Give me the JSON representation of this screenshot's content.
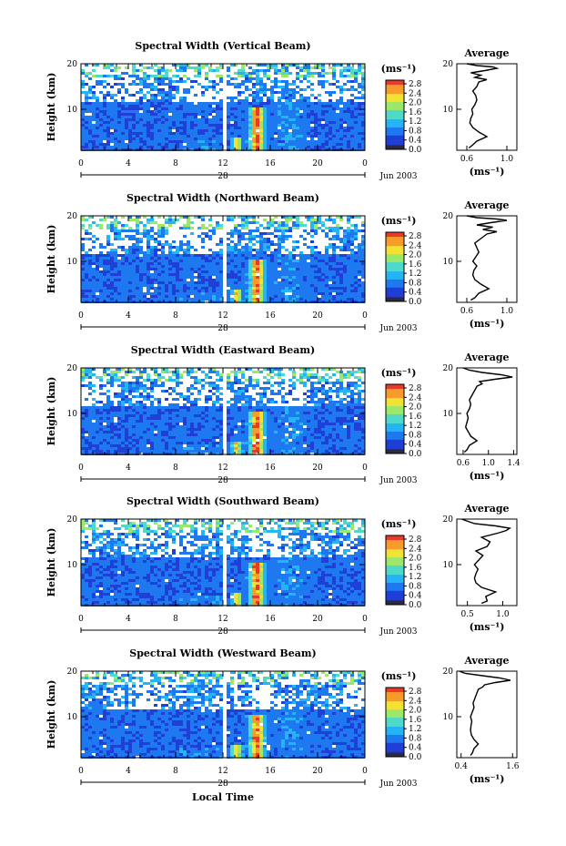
{
  "figure": {
    "xlabel": "Local Time",
    "date_label": "Jun 2003",
    "day_label": "28",
    "colorbar_unit": "(ms⁻¹)",
    "colorbar_ticks": [
      "2.8",
      "2.4",
      "2.0",
      "1.6",
      "1.2",
      "0.8",
      "0.4",
      "0.0"
    ],
    "colormap": [
      "#2a2a8c",
      "#1f3fd6",
      "#1e78f0",
      "#25b4f5",
      "#4fd9c8",
      "#9be86a",
      "#f2e234",
      "#f79b2a",
      "#e83a2a"
    ],
    "ylabel": "Height (km)",
    "avg_title": "Average",
    "avg_xlabel": "(ms⁻¹)"
  },
  "chart_data": [
    {
      "type": "heatmap",
      "title": "Spectral Width (Vertical Beam)",
      "xlabel": "Local Time",
      "ylabel": "Height (km)",
      "xticks": [
        "0",
        "4",
        "8",
        "12",
        "16",
        "20",
        "0"
      ],
      "yticks": [
        "10",
        "20"
      ],
      "xlim": [
        0,
        24
      ],
      "ylim": [
        1,
        20
      ],
      "clim": [
        0,
        3
      ],
      "data_gap_local_time": 12
    },
    {
      "type": "line",
      "title": "Average",
      "xlabel": "(ms⁻¹)",
      "xticks": [
        "0.6",
        "1.0"
      ],
      "xlim": [
        0.5,
        1.1
      ],
      "yticks": [
        "10",
        "20"
      ],
      "ylim": [
        1,
        20
      ],
      "x": [
        0.62,
        0.65,
        0.7,
        0.8,
        0.72,
        0.66,
        0.63,
        0.64,
        0.66,
        0.65,
        0.68,
        0.7,
        0.69,
        0.66,
        0.7,
        0.72,
        0.8,
        0.68,
        0.74,
        0.64,
        0.78,
        0.9,
        0.86,
        0.7,
        0.6
      ],
      "y": [
        1.5,
        2,
        3,
        4,
        5,
        6,
        7,
        8,
        9,
        10,
        11,
        12,
        13,
        14,
        15,
        16,
        16.5,
        17,
        17.5,
        18,
        18.5,
        19,
        19.3,
        19.6,
        20
      ]
    },
    {
      "type": "heatmap",
      "title": "Spectral Width (Northward Beam)",
      "xlabel": "Local Time",
      "ylabel": "Height (km)",
      "xticks": [
        "0",
        "4",
        "8",
        "12",
        "16",
        "20",
        "0"
      ],
      "yticks": [
        "10",
        "20"
      ],
      "xlim": [
        0,
        24
      ],
      "ylim": [
        1,
        20
      ],
      "clim": [
        0,
        3
      ],
      "data_gap_local_time": 12
    },
    {
      "type": "line",
      "title": "Average",
      "xlabel": "(ms⁻¹)",
      "xticks": [
        "0.6",
        "1.0"
      ],
      "xlim": [
        0.5,
        1.1
      ],
      "yticks": [
        "10",
        "20"
      ],
      "ylim": [
        1,
        20
      ],
      "x": [
        0.64,
        0.68,
        0.72,
        0.82,
        0.74,
        0.68,
        0.66,
        0.67,
        0.7,
        0.66,
        0.69,
        0.72,
        0.7,
        0.68,
        0.74,
        0.8,
        0.9,
        0.76,
        0.86,
        0.7,
        0.84,
        1.0,
        0.9,
        0.7,
        0.6
      ],
      "y": [
        1.5,
        2,
        3,
        4,
        5,
        6,
        7,
        8,
        9,
        10,
        11,
        12,
        13,
        14,
        15,
        16,
        16.5,
        17,
        17.5,
        18,
        18.5,
        19,
        19.3,
        19.6,
        20
      ]
    },
    {
      "type": "heatmap",
      "title": "Spectral Width (Eastward Beam)",
      "xlabel": "Local Time",
      "ylabel": "Height (km)",
      "xticks": [
        "0",
        "4",
        "8",
        "12",
        "16",
        "20",
        "0"
      ],
      "yticks": [
        "10",
        "20"
      ],
      "xlim": [
        0,
        24
      ],
      "ylim": [
        1,
        20
      ],
      "clim": [
        0,
        3
      ],
      "data_gap_local_time": 12
    },
    {
      "type": "line",
      "title": "Average",
      "xlabel": "(ms⁻¹)",
      "xticks": [
        "0.6",
        "1.0",
        "1.4"
      ],
      "xlim": [
        0.5,
        1.45
      ],
      "yticks": [
        "10",
        "20"
      ],
      "ylim": [
        1,
        20
      ],
      "x": [
        0.62,
        0.66,
        0.7,
        0.82,
        0.72,
        0.68,
        0.64,
        0.66,
        0.68,
        0.66,
        0.7,
        0.72,
        0.7,
        0.74,
        0.78,
        0.82,
        0.9,
        0.86,
        1.1,
        1.38,
        1.2,
        0.9,
        0.7,
        0.6
      ],
      "y": [
        1.5,
        2,
        3,
        4,
        5,
        6,
        7,
        8,
        9,
        10,
        11,
        12,
        13,
        14,
        15,
        16,
        16.5,
        17,
        17.5,
        18,
        18.5,
        19,
        19.5,
        20
      ]
    },
    {
      "type": "heatmap",
      "title": "Spectral Width (Southward Beam)",
      "xlabel": "Local Time",
      "ylabel": "Height (km)",
      "xticks": [
        "0",
        "4",
        "8",
        "12",
        "16",
        "20",
        "0"
      ],
      "yticks": [
        "10",
        "20"
      ],
      "xlim": [
        0,
        24
      ],
      "ylim": [
        1,
        20
      ],
      "clim": [
        0,
        3
      ],
      "data_gap_local_time": 12
    },
    {
      "type": "line",
      "title": "Average",
      "xlabel": "(ms⁻¹)",
      "xticks": [
        "0.5",
        "1.0"
      ],
      "xlim": [
        0.35,
        1.2
      ],
      "yticks": [
        "10",
        "20"
      ],
      "ylim": [
        1,
        20
      ],
      "x": [
        0.7,
        0.78,
        0.76,
        0.9,
        0.7,
        0.62,
        0.6,
        0.62,
        0.65,
        0.6,
        0.66,
        0.72,
        0.62,
        0.78,
        0.82,
        0.7,
        0.95,
        1.05,
        1.1,
        0.9,
        0.6,
        0.42
      ],
      "y": [
        1.5,
        2,
        3,
        4,
        5,
        6,
        7,
        8,
        9,
        10,
        11,
        12,
        13,
        14,
        15,
        16,
        17,
        17.5,
        18,
        18.5,
        19,
        20
      ]
    },
    {
      "type": "heatmap",
      "title": "Spectral Width (Westward Beam)",
      "xlabel": "Local Time",
      "ylabel": "Height (km)",
      "xticks": [
        "0",
        "4",
        "8",
        "12",
        "16",
        "20",
        "0"
      ],
      "yticks": [
        "10",
        "20"
      ],
      "xlim": [
        0,
        24
      ],
      "ylim": [
        1,
        20
      ],
      "clim": [
        0,
        3
      ],
      "data_gap_local_time": 12
    },
    {
      "type": "line",
      "title": "Average",
      "xlabel": "(ms⁻¹)",
      "xticks": [
        "0.4",
        "1.6"
      ],
      "xlim": [
        0.3,
        1.7
      ],
      "yticks": [
        "10",
        "20"
      ],
      "ylim": [
        1,
        20
      ],
      "x": [
        0.62,
        0.66,
        0.7,
        0.8,
        0.7,
        0.64,
        0.62,
        0.63,
        0.65,
        0.62,
        0.66,
        0.7,
        0.68,
        0.72,
        0.76,
        0.8,
        0.9,
        0.95,
        1.2,
        1.55,
        1.3,
        0.9,
        0.5,
        0.36
      ],
      "y": [
        1.5,
        2,
        3,
        4,
        5,
        6,
        7,
        8,
        9,
        10,
        11,
        12,
        13,
        14,
        15,
        16,
        16.5,
        17,
        17.5,
        18,
        18.5,
        19,
        19.5,
        20
      ]
    }
  ]
}
